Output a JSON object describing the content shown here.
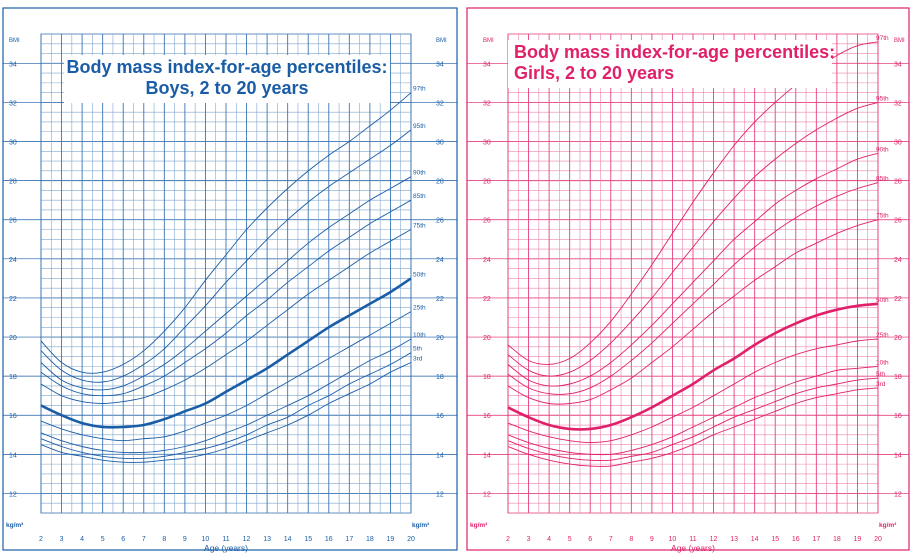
{
  "chart_data": [
    {
      "type": "line",
      "title": "Body mass index-for-age percentiles:",
      "subtitle": "Boys, 2 to 20 years",
      "xlabel": "Age (years)",
      "ylabel": "BMI",
      "unit": "kg/m²",
      "xlim": [
        2,
        20
      ],
      "ylim": [
        11,
        35.5
      ],
      "x_ticks": [
        2,
        3,
        4,
        5,
        6,
        7,
        8,
        9,
        10,
        11,
        12,
        13,
        14,
        15,
        16,
        17,
        18,
        19,
        20
      ],
      "y_ticks": [
        12,
        14,
        16,
        18,
        20,
        22,
        24,
        26,
        28,
        30,
        32,
        34
      ],
      "grid": true,
      "color": "#1a5da6",
      "x": [
        2,
        3,
        4,
        5,
        6,
        7,
        8,
        9,
        10,
        11,
        12,
        13,
        14,
        15,
        16,
        17,
        18,
        19,
        20
      ],
      "series": [
        {
          "name": "97th",
          "values": [
            19.8,
            18.7,
            18.2,
            18.2,
            18.6,
            19.3,
            20.3,
            21.5,
            22.9,
            24.2,
            25.5,
            26.6,
            27.6,
            28.5,
            29.3,
            30.0,
            30.8,
            31.6,
            32.5
          ]
        },
        {
          "name": "95th",
          "values": [
            19.3,
            18.3,
            17.8,
            17.7,
            18.0,
            18.6,
            19.4,
            20.5,
            21.6,
            22.8,
            23.9,
            25.0,
            26.0,
            26.9,
            27.7,
            28.4,
            29.1,
            29.8,
            30.6
          ]
        },
        {
          "name": "90th",
          "values": [
            18.7,
            17.8,
            17.4,
            17.3,
            17.5,
            18.0,
            18.6,
            19.4,
            20.3,
            21.2,
            22.1,
            23.0,
            23.9,
            24.8,
            25.6,
            26.3,
            27.0,
            27.6,
            28.2
          ]
        },
        {
          "name": "85th",
          "values": [
            18.2,
            17.5,
            17.1,
            17.0,
            17.1,
            17.5,
            18.0,
            18.7,
            19.4,
            20.2,
            21.1,
            21.9,
            22.8,
            23.6,
            24.4,
            25.1,
            25.8,
            26.4,
            27.0
          ]
        },
        {
          "name": "75th",
          "values": [
            17.6,
            17.0,
            16.7,
            16.6,
            16.7,
            16.9,
            17.3,
            17.8,
            18.4,
            19.1,
            19.8,
            20.6,
            21.4,
            22.2,
            22.9,
            23.6,
            24.3,
            24.9,
            25.5
          ]
        },
        {
          "name": "50th",
          "values": [
            16.5,
            16.0,
            15.6,
            15.4,
            15.4,
            15.5,
            15.8,
            16.2,
            16.6,
            17.2,
            17.8,
            18.4,
            19.1,
            19.8,
            20.5,
            21.1,
            21.7,
            22.3,
            23.0
          ]
        },
        {
          "name": "25th",
          "values": [
            15.7,
            15.3,
            15.0,
            14.8,
            14.7,
            14.8,
            14.9,
            15.2,
            15.6,
            16.0,
            16.5,
            17.1,
            17.7,
            18.3,
            18.9,
            19.5,
            20.1,
            20.7,
            21.3
          ]
        },
        {
          "name": "10th",
          "values": [
            15.1,
            14.7,
            14.4,
            14.2,
            14.1,
            14.1,
            14.2,
            14.4,
            14.7,
            15.1,
            15.5,
            16.0,
            16.5,
            17.0,
            17.6,
            18.2,
            18.8,
            19.3,
            19.9
          ]
        },
        {
          "name": "5th",
          "values": [
            14.8,
            14.4,
            14.1,
            13.9,
            13.8,
            13.8,
            13.9,
            14.1,
            14.3,
            14.6,
            15.0,
            15.5,
            15.9,
            16.5,
            17.0,
            17.6,
            18.1,
            18.6,
            19.2
          ]
        },
        {
          "name": "3rd",
          "values": [
            14.5,
            14.1,
            13.9,
            13.7,
            13.6,
            13.6,
            13.7,
            13.8,
            14.0,
            14.3,
            14.7,
            15.1,
            15.5,
            16.0,
            16.6,
            17.1,
            17.6,
            18.2,
            18.7
          ]
        }
      ]
    },
    {
      "type": "line",
      "title": "Body mass index-for-age percentiles:",
      "subtitle": "Girls, 2 to 20 years",
      "xlabel": "Age (years)",
      "ylabel": "BMI",
      "unit": "kg/m²",
      "xlim": [
        2,
        20
      ],
      "ylim": [
        11,
        35.5
      ],
      "x_ticks": [
        2,
        3,
        4,
        5,
        6,
        7,
        8,
        9,
        10,
        11,
        12,
        13,
        14,
        15,
        16,
        17,
        18,
        19,
        20
      ],
      "y_ticks": [
        12,
        14,
        16,
        18,
        20,
        22,
        24,
        26,
        28,
        30,
        32,
        34
      ],
      "grid": true,
      "color": "#e0206a",
      "x": [
        2,
        3,
        4,
        5,
        6,
        7,
        8,
        9,
        10,
        11,
        12,
        13,
        14,
        15,
        16,
        17,
        18,
        19,
        20
      ],
      "series": [
        {
          "name": "97th",
          "values": [
            19.6,
            18.8,
            18.6,
            18.9,
            19.7,
            20.8,
            22.2,
            23.7,
            25.3,
            26.9,
            28.4,
            29.8,
            31.0,
            32.0,
            32.9,
            33.7,
            34.4,
            34.9,
            35.1
          ]
        },
        {
          "name": "95th",
          "values": [
            19.1,
            18.3,
            18.0,
            18.2,
            18.8,
            19.7,
            20.8,
            22.0,
            23.3,
            24.6,
            25.9,
            27.1,
            28.2,
            29.1,
            29.9,
            30.6,
            31.2,
            31.7,
            32.0
          ]
        },
        {
          "name": "90th",
          "values": [
            18.6,
            17.8,
            17.5,
            17.6,
            18.0,
            18.7,
            19.6,
            20.6,
            21.7,
            22.8,
            23.9,
            25.0,
            25.9,
            26.8,
            27.5,
            28.1,
            28.6,
            29.1,
            29.4
          ]
        },
        {
          "name": "85th",
          "values": [
            18.1,
            17.4,
            17.1,
            17.1,
            17.4,
            18.0,
            18.8,
            19.7,
            20.7,
            21.7,
            22.7,
            23.7,
            24.6,
            25.4,
            26.1,
            26.7,
            27.2,
            27.6,
            27.9
          ]
        },
        {
          "name": "75th",
          "values": [
            17.5,
            16.9,
            16.6,
            16.6,
            16.8,
            17.3,
            17.9,
            18.7,
            19.5,
            20.4,
            21.3,
            22.1,
            22.9,
            23.6,
            24.3,
            24.8,
            25.3,
            25.7,
            26.0
          ]
        },
        {
          "name": "50th",
          "values": [
            16.4,
            15.9,
            15.5,
            15.3,
            15.3,
            15.5,
            15.9,
            16.4,
            17.0,
            17.6,
            18.3,
            18.9,
            19.6,
            20.2,
            20.7,
            21.1,
            21.4,
            21.6,
            21.7
          ]
        },
        {
          "name": "25th",
          "values": [
            15.6,
            15.2,
            14.9,
            14.7,
            14.6,
            14.7,
            15.0,
            15.4,
            15.9,
            16.4,
            17.0,
            17.6,
            18.2,
            18.7,
            19.1,
            19.4,
            19.6,
            19.8,
            19.9
          ]
        },
        {
          "name": "10th",
          "values": [
            15.0,
            14.6,
            14.3,
            14.1,
            14.0,
            14.0,
            14.2,
            14.5,
            14.9,
            15.4,
            15.9,
            16.4,
            16.9,
            17.3,
            17.7,
            18.0,
            18.3,
            18.4,
            18.5
          ]
        },
        {
          "name": "5th",
          "values": [
            14.7,
            14.3,
            14.0,
            13.8,
            13.7,
            13.7,
            13.9,
            14.1,
            14.5,
            14.9,
            15.4,
            15.9,
            16.3,
            16.7,
            17.1,
            17.4,
            17.6,
            17.8,
            17.9
          ]
        },
        {
          "name": "3rd",
          "values": [
            14.4,
            14.0,
            13.7,
            13.5,
            13.4,
            13.4,
            13.6,
            13.8,
            14.1,
            14.5,
            15.0,
            15.4,
            15.8,
            16.2,
            16.6,
            16.9,
            17.1,
            17.3,
            17.4
          ]
        }
      ]
    }
  ]
}
